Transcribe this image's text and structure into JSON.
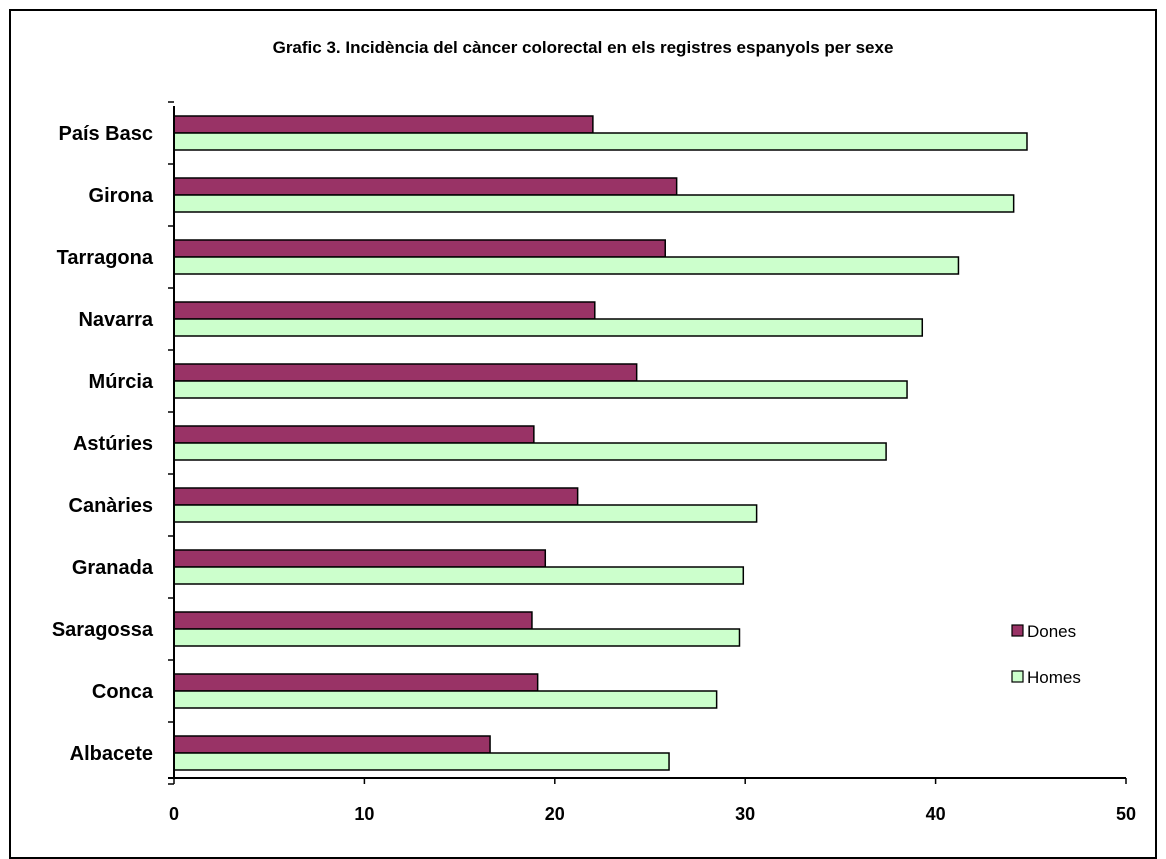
{
  "chart_data": {
    "type": "bar",
    "orientation": "horizontal",
    "title": "Grafic 3. Incidència del càncer colorectal en els registres espanyols per sexe",
    "categories": [
      "País Basc",
      "Girona",
      "Tarragona",
      "Navarra",
      "Múrcia",
      "Astúries",
      "Canàries",
      "Granada",
      "Saragossa",
      "Conca",
      "Albacete"
    ],
    "series": [
      {
        "name": "Dones",
        "color": "#993366",
        "values": [
          22.0,
          26.4,
          25.8,
          22.1,
          24.3,
          18.9,
          21.2,
          19.5,
          18.8,
          19.1,
          16.6
        ]
      },
      {
        "name": "Homes",
        "color": "#ccffcc",
        "values": [
          44.8,
          44.1,
          41.2,
          39.3,
          38.5,
          37.4,
          30.6,
          29.9,
          29.7,
          28.5,
          26.0
        ]
      }
    ],
    "xlim": [
      0,
      50
    ],
    "xticks": [
      "0",
      "10",
      "20",
      "30",
      "40",
      "50"
    ],
    "grid": false,
    "legend_position": "right"
  }
}
